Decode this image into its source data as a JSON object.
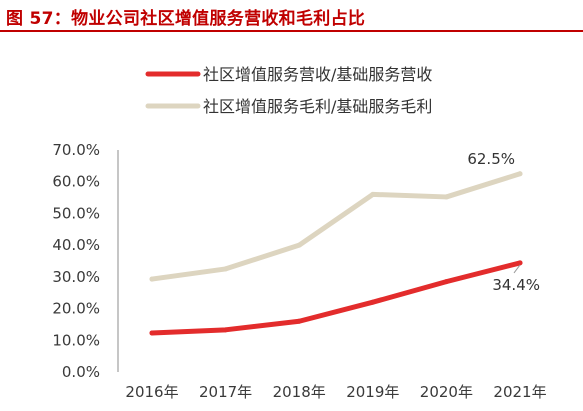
{
  "figure": {
    "title": "图 57：物业公司社区增值服务营收和毛利占比",
    "accent_color": "#c00000"
  },
  "chart_data": {
    "type": "line",
    "categories": [
      "2016年",
      "2017年",
      "2018年",
      "2019年",
      "2020年",
      "2021年"
    ],
    "series": [
      {
        "name": "社区增值服务营收/基础服务营收",
        "color": "#e32c2c",
        "values": [
          12.3,
          13.3,
          16.0,
          22.0,
          28.5,
          34.4
        ]
      },
      {
        "name": "社区增值服务毛利/基础服务毛利",
        "color": "#ddd5c0",
        "values": [
          29.3,
          32.5,
          40.0,
          56.0,
          55.2,
          62.5
        ]
      }
    ],
    "data_labels": [
      {
        "series": 1,
        "index": 5,
        "text": "62.5%"
      },
      {
        "series": 0,
        "index": 5,
        "text": "34.4%"
      }
    ],
    "ylim": [
      0,
      70
    ],
    "yticks": [
      "0.0%",
      "10.0%",
      "20.0%",
      "30.0%",
      "40.0%",
      "50.0%",
      "60.0%",
      "70.0%"
    ],
    "legend": "top",
    "grid": false
  }
}
